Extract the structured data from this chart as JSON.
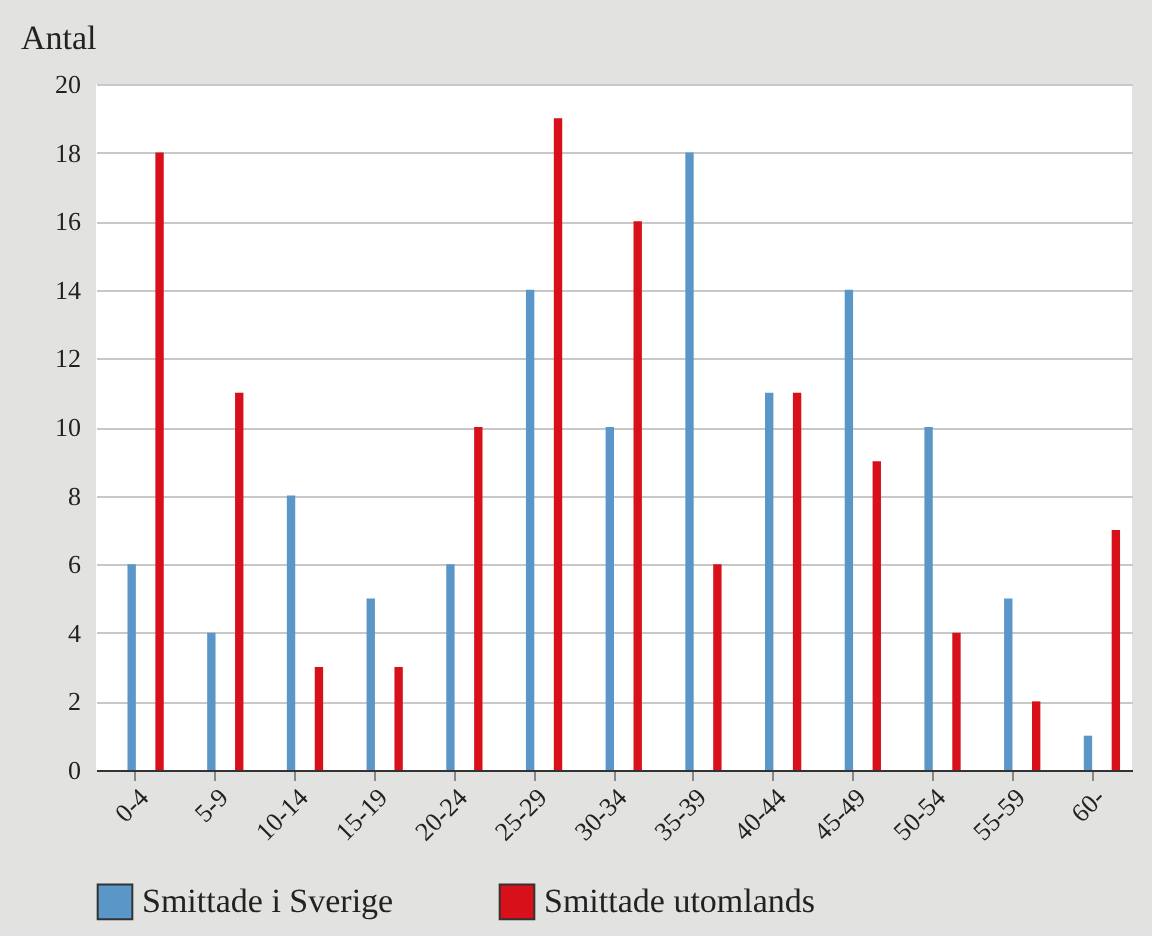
{
  "chart_data": {
    "type": "bar",
    "ylabel": "Antal",
    "categories": [
      "0-4",
      "5-9",
      "10-14",
      "15-19",
      "20-24",
      "25-29",
      "30-34",
      "35-39",
      "40-44",
      "45-49",
      "50-54",
      "55-59",
      "60-"
    ],
    "series": [
      {
        "name": "Smittade i Sverige",
        "color": "#5b96c8",
        "values": [
          6,
          4,
          8,
          5,
          6,
          14,
          10,
          18,
          11,
          14,
          10,
          5,
          1
        ]
      },
      {
        "name": "Smittade utomlands",
        "color": "#d7101a",
        "values": [
          18,
          11,
          3,
          3,
          10,
          19,
          16,
          6,
          11,
          9,
          4,
          2,
          7
        ]
      }
    ],
    "ylim": [
      0,
      20
    ],
    "yticks": [
      0,
      2,
      4,
      6,
      8,
      10,
      12,
      14,
      16,
      18,
      20
    ],
    "grid": "y",
    "legend": "bottom"
  }
}
